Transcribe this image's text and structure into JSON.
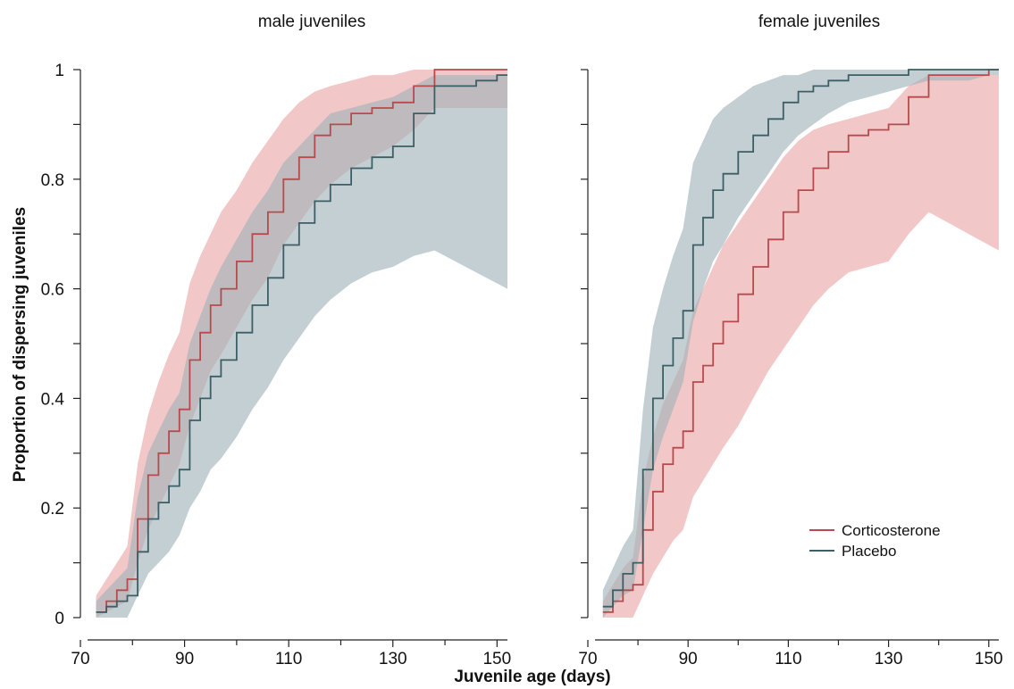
{
  "chart_data": {
    "type": "line",
    "xlabel": "Juvenile age (days)",
    "ylabel": "Proportion of dispersing juveniles",
    "xlim": [
      70,
      152
    ],
    "ylim": [
      0,
      1
    ],
    "x_ticks": [
      70,
      80,
      90,
      100,
      110,
      120,
      130,
      140,
      150
    ],
    "x_tick_labels": [
      "70",
      "90",
      "110",
      "130",
      "150"
    ],
    "y_ticks": [
      0,
      0.1,
      0.2,
      0.3,
      0.4,
      0.5,
      0.6,
      0.7,
      0.8,
      0.9,
      1
    ],
    "y_tick_labels": [
      "0",
      "0.2",
      "0.4",
      "0.6",
      "0.8",
      "1"
    ],
    "legend": {
      "placement": "bottom-right of right panel",
      "entries": [
        {
          "label": "Corticosterone",
          "color": "#b84a4e"
        },
        {
          "label": "Placebo",
          "color": "#3c5f66"
        }
      ]
    },
    "colors": {
      "corticosterone_line": "#b84a4e",
      "corticosterone_band": "#e8a4a6",
      "placebo_line": "#3c5f66",
      "placebo_band": "#9fb1b8"
    },
    "panels": [
      {
        "title": "male juveniles",
        "series": [
          {
            "name": "Corticosterone",
            "x": [
              73,
              75,
              77,
              79,
              81,
              83,
              85,
              87,
              89,
              91,
              93,
              95,
              97,
              100,
              103,
              106,
              109,
              112,
              115,
              118,
              122,
              126,
              130,
              134,
              138,
              142,
              146,
              150,
              152
            ],
            "y": [
              0.01,
              0.03,
              0.05,
              0.07,
              0.18,
              0.26,
              0.3,
              0.34,
              0.38,
              0.47,
              0.52,
              0.57,
              0.6,
              0.65,
              0.7,
              0.74,
              0.8,
              0.84,
              0.88,
              0.9,
              0.92,
              0.93,
              0.94,
              0.97,
              1.0,
              1.0,
              1.0,
              1.0,
              1.0
            ],
            "lower": [
              0.0,
              0.01,
              0.02,
              0.03,
              0.1,
              0.16,
              0.2,
              0.24,
              0.28,
              0.35,
              0.4,
              0.45,
              0.48,
              0.53,
              0.58,
              0.62,
              0.68,
              0.72,
              0.76,
              0.79,
              0.82,
              0.84,
              0.86,
              0.89,
              0.93,
              0.93,
              0.93,
              0.93,
              0.93
            ],
            "upper": [
              0.04,
              0.07,
              0.1,
              0.13,
              0.28,
              0.37,
              0.43,
              0.48,
              0.52,
              0.61,
              0.66,
              0.7,
              0.74,
              0.78,
              0.83,
              0.87,
              0.91,
              0.94,
              0.96,
              0.97,
              0.98,
              0.99,
              0.99,
              1.0,
              1.0,
              1.0,
              1.0,
              1.0,
              1.0
            ]
          },
          {
            "name": "Placebo",
            "x": [
              73,
              75,
              77,
              79,
              81,
              83,
              85,
              87,
              89,
              91,
              93,
              95,
              97,
              100,
              103,
              106,
              109,
              112,
              115,
              118,
              122,
              126,
              130,
              134,
              138,
              142,
              146,
              150,
              152
            ],
            "y": [
              0.01,
              0.02,
              0.03,
              0.04,
              0.12,
              0.18,
              0.21,
              0.24,
              0.27,
              0.36,
              0.4,
              0.44,
              0.47,
              0.52,
              0.57,
              0.62,
              0.68,
              0.72,
              0.76,
              0.79,
              0.82,
              0.84,
              0.86,
              0.92,
              0.97,
              0.97,
              0.98,
              0.99,
              0.99
            ],
            "lower": [
              0.0,
              0.0,
              0.0,
              0.0,
              0.04,
              0.08,
              0.1,
              0.12,
              0.15,
              0.2,
              0.23,
              0.27,
              0.29,
              0.33,
              0.38,
              0.42,
              0.47,
              0.51,
              0.55,
              0.58,
              0.61,
              0.63,
              0.64,
              0.66,
              0.67,
              0.65,
              0.63,
              0.61,
              0.6
            ],
            "upper": [
              0.03,
              0.05,
              0.07,
              0.09,
              0.22,
              0.3,
              0.34,
              0.38,
              0.41,
              0.5,
              0.55,
              0.6,
              0.64,
              0.69,
              0.74,
              0.78,
              0.83,
              0.86,
              0.89,
              0.92,
              0.93,
              0.94,
              0.95,
              0.97,
              0.99,
              0.99,
              0.99,
              0.99,
              0.99
            ]
          }
        ]
      },
      {
        "title": "female juveniles",
        "series": [
          {
            "name": "Corticosterone",
            "x": [
              73,
              75,
              77,
              79,
              81,
              83,
              85,
              87,
              89,
              91,
              93,
              95,
              97,
              100,
              103,
              106,
              109,
              112,
              115,
              118,
              122,
              126,
              130,
              134,
              138,
              142,
              146,
              150,
              152
            ],
            "y": [
              0.01,
              0.03,
              0.05,
              0.06,
              0.16,
              0.23,
              0.28,
              0.31,
              0.34,
              0.43,
              0.46,
              0.5,
              0.54,
              0.59,
              0.64,
              0.69,
              0.74,
              0.78,
              0.82,
              0.85,
              0.88,
              0.89,
              0.9,
              0.95,
              0.99,
              0.99,
              0.99,
              1.0,
              1.0
            ],
            "lower": [
              0.0,
              0.0,
              0.0,
              0.0,
              0.04,
              0.08,
              0.11,
              0.14,
              0.16,
              0.22,
              0.25,
              0.28,
              0.31,
              0.35,
              0.4,
              0.45,
              0.49,
              0.53,
              0.57,
              0.6,
              0.63,
              0.64,
              0.65,
              0.7,
              0.74,
              0.72,
              0.7,
              0.68,
              0.67
            ],
            "upper": [
              0.03,
              0.06,
              0.09,
              0.11,
              0.25,
              0.33,
              0.39,
              0.43,
              0.47,
              0.56,
              0.6,
              0.64,
              0.68,
              0.72,
              0.76,
              0.8,
              0.84,
              0.87,
              0.89,
              0.9,
              0.91,
              0.92,
              0.93,
              0.97,
              0.99,
              0.99,
              0.99,
              0.99,
              0.99
            ]
          },
          {
            "name": "Placebo",
            "x": [
              73,
              75,
              77,
              79,
              81,
              83,
              85,
              87,
              89,
              91,
              93,
              95,
              97,
              100,
              103,
              106,
              109,
              112,
              115,
              118,
              122,
              126,
              130,
              134,
              138,
              142,
              146,
              150,
              152
            ],
            "y": [
              0.02,
              0.05,
              0.08,
              0.1,
              0.27,
              0.4,
              0.46,
              0.51,
              0.56,
              0.68,
              0.73,
              0.78,
              0.81,
              0.85,
              0.88,
              0.91,
              0.94,
              0.96,
              0.97,
              0.98,
              0.99,
              0.99,
              0.99,
              1.0,
              1.0,
              1.0,
              1.0,
              1.0,
              1.0
            ],
            "lower": [
              0.0,
              0.02,
              0.04,
              0.05,
              0.16,
              0.27,
              0.33,
              0.38,
              0.43,
              0.54,
              0.6,
              0.65,
              0.68,
              0.73,
              0.77,
              0.81,
              0.85,
              0.88,
              0.9,
              0.92,
              0.94,
              0.95,
              0.96,
              0.97,
              0.98,
              0.98,
              0.98,
              0.99,
              0.99
            ],
            "upper": [
              0.05,
              0.09,
              0.13,
              0.16,
              0.38,
              0.53,
              0.6,
              0.66,
              0.71,
              0.83,
              0.87,
              0.91,
              0.93,
              0.95,
              0.97,
              0.98,
              0.99,
              0.99,
              1.0,
              1.0,
              1.0,
              1.0,
              1.0,
              1.0,
              1.0,
              1.0,
              1.0,
              1.0,
              1.0
            ]
          }
        ]
      }
    ]
  }
}
